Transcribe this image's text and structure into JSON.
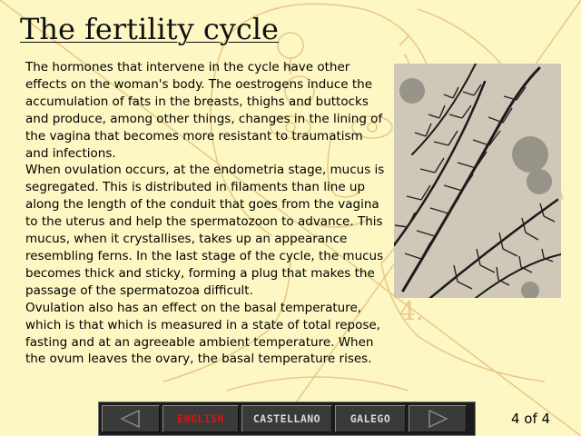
{
  "title": "The fertility cycle",
  "body": {
    "p1": "The hormones that intervene in the cycle have other effects on the woman's body. The oestrogens induce the accumulation of fats in the breasts, thighs and buttocks and produce, among other things, changes in the lining of the vagina that becomes more resistant to traumatism and infections.",
    "p2": "When ovulation occurs, at the endometria stage, mucus is segregated. This is distributed in filaments than line up along the length of the conduit that goes from the vagina to the uterus and help the spermatozoon to advance. This mucus, when it crystallises, takes up an appearance resembling ferns. In the last stage of the cycle, the mucus becomes thick and sticky, forming a plug that makes the passage of the spermatozoa difficult.",
    "p3": "Ovulation also has an effect on the basal temperature, which is that which is measured in a state of total repose, fasting and at an agreeable ambient temperature. When the ovum leaves the ovary, the basal temperature rises."
  },
  "nav": {
    "prev_icon": "left-triangle-icon",
    "next_icon": "right-triangle-icon",
    "languages": {
      "english": "ENGLISH",
      "castellano": "CASTELLANO",
      "galego": "GALEGO"
    },
    "active_language": "english"
  },
  "page_indicator": "4 of 4",
  "colors": {
    "background": "#fdf7c3",
    "sketch": "#e9c98a",
    "active_language": "#e01010",
    "nav_bg": "#1c1c1c"
  }
}
